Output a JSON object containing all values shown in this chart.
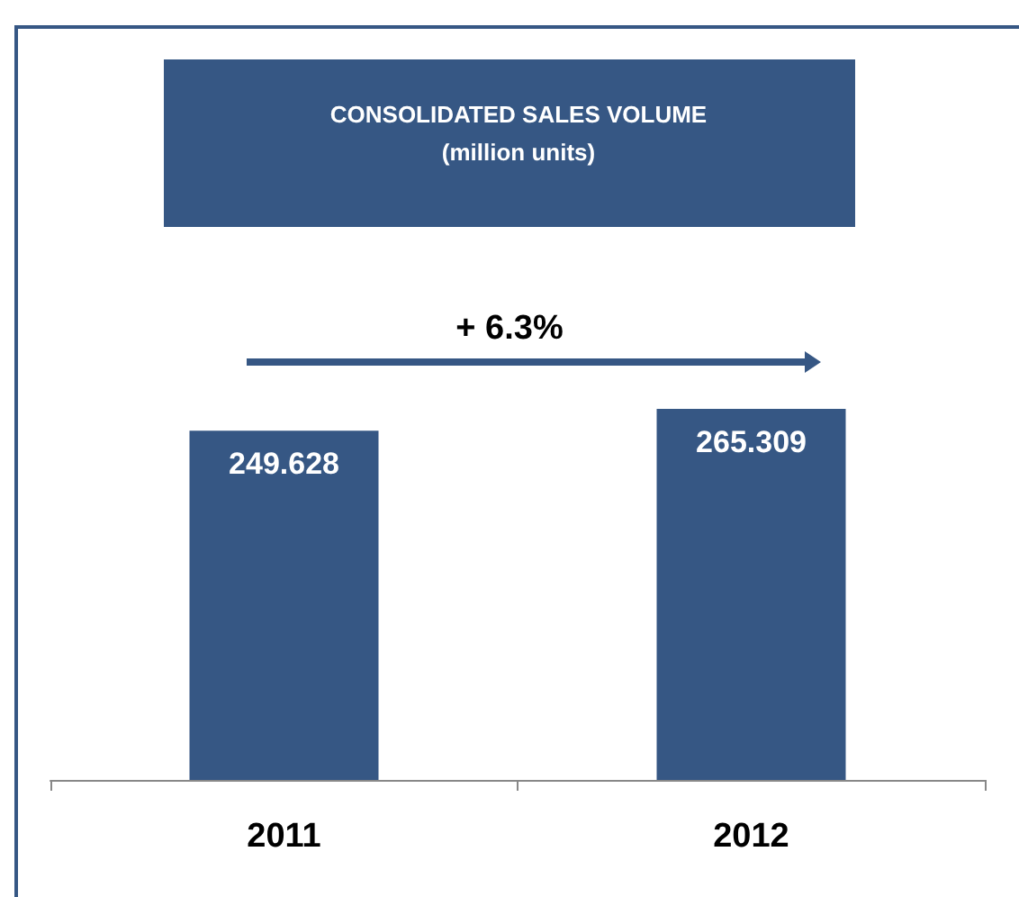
{
  "chart_data": {
    "type": "bar",
    "title": "CONSOLIDATED SALES VOLUME",
    "subtitle": "(million units)",
    "categories": [
      "2011",
      "2012"
    ],
    "values": [
      249.628,
      265.309
    ],
    "color": "#365784",
    "tick_labels": "x",
    "data_labels": true,
    "annotations": [
      "+ 6.3%"
    ]
  }
}
